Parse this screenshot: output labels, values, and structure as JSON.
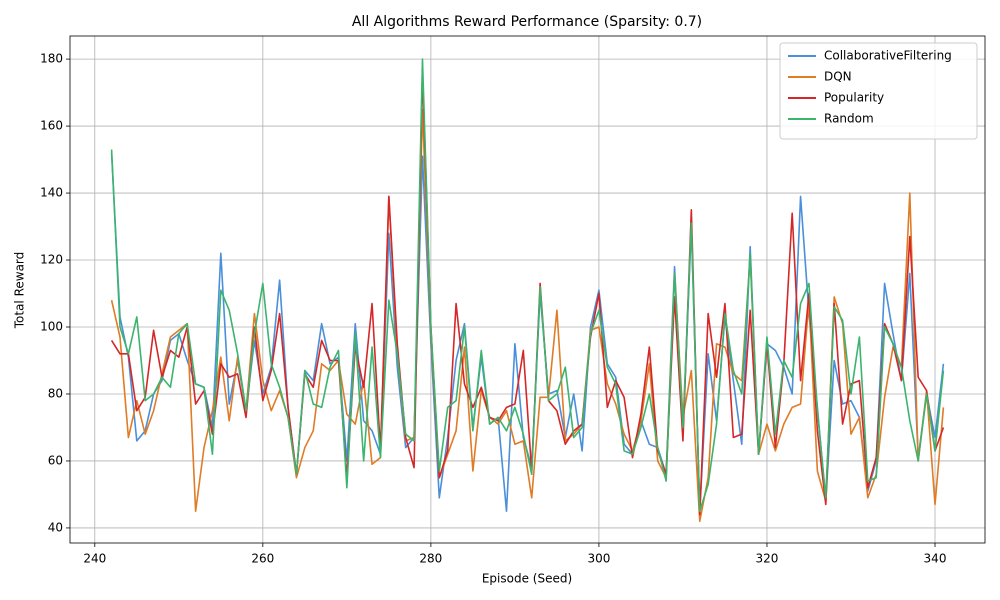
{
  "chart_data": {
    "type": "line",
    "title": "All Algorithms Reward Performance (Sparsity: 0.7)",
    "x_label": "Episode (Seed)",
    "y_label": "Total Reward",
    "x": [
      242,
      243,
      244,
      245,
      246,
      247,
      248,
      249,
      250,
      251,
      252,
      253,
      254,
      255,
      256,
      257,
      258,
      259,
      260,
      261,
      262,
      263,
      264,
      265,
      266,
      267,
      268,
      269,
      270,
      271,
      272,
      273,
      274,
      275,
      276,
      277,
      278,
      279,
      280,
      281,
      282,
      283,
      284,
      285,
      286,
      287,
      288,
      289,
      290,
      291,
      292,
      293,
      294,
      295,
      296,
      297,
      298,
      299,
      300,
      301,
      302,
      303,
      304,
      305,
      306,
      307,
      308,
      309,
      310,
      311,
      312,
      313,
      314,
      315,
      316,
      317,
      318,
      319,
      320,
      321,
      322,
      323,
      324,
      325,
      326,
      327,
      328,
      329,
      330,
      331,
      332,
      333,
      334,
      335,
      336,
      337,
      338,
      339,
      340,
      341
    ],
    "series": [
      {
        "name": "CollaborativeFiltering",
        "color": "#4a8fd9",
        "values": [
          152,
          103,
          91,
          66,
          69,
          80,
          84,
          96,
          98,
          90,
          83,
          82,
          70,
          122,
          77,
          90,
          75,
          96,
          80,
          88,
          114,
          76,
          56,
          87,
          84,
          101,
          89,
          91,
          60,
          101,
          72,
          69,
          62,
          128,
          88,
          64,
          67,
          151,
          95,
          49,
          67,
          90,
          101,
          70,
          91,
          71,
          73,
          45,
          95,
          67,
          58,
          110,
          80,
          81,
          67,
          80,
          63,
          100,
          111,
          89,
          85,
          65,
          62,
          72,
          65,
          64,
          56,
          118,
          68,
          130,
          45,
          92,
          72,
          103,
          84,
          65,
          124,
          62,
          95,
          93,
          88,
          80,
          139,
          104,
          76,
          48,
          90,
          77,
          78,
          73,
          51,
          60,
          113,
          98,
          84,
          116,
          61,
          80,
          67,
          89
        ]
      },
      {
        "name": "DQN",
        "color": "#e07b26",
        "values": [
          108,
          97,
          67,
          78,
          68,
          75,
          86,
          97,
          99,
          101,
          45,
          64,
          75,
          91,
          72,
          91,
          75,
          104,
          84,
          75,
          81,
          73,
          55,
          64,
          69,
          89,
          87,
          90,
          74,
          71,
          84,
          59,
          61,
          139,
          92,
          66,
          67,
          165,
          98,
          55,
          62,
          69,
          94,
          57,
          81,
          73,
          71,
          75,
          65,
          66,
          49,
          79,
          79,
          105,
          66,
          68,
          71,
          99,
          100,
          83,
          77,
          68,
          63,
          72,
          89,
          60,
          55,
          116,
          73,
          87,
          42,
          55,
          95,
          94,
          86,
          84,
          121,
          62,
          71,
          63,
          71,
          76,
          77,
          108,
          57,
          48,
          109,
          101,
          68,
          73,
          49,
          56,
          79,
          94,
          88,
          140,
          60,
          81,
          47,
          76
        ]
      },
      {
        "name": "Popularity",
        "color": "#d62728",
        "values": [
          96,
          92,
          92,
          75,
          79,
          99,
          85,
          93,
          91,
          100,
          77,
          81,
          68,
          89,
          85,
          86,
          73,
          100,
          78,
          87,
          104,
          76,
          56,
          86,
          82,
          96,
          90,
          90,
          55,
          94,
          82,
          107,
          63,
          139,
          95,
          67,
          58,
          176,
          100,
          55,
          63,
          107,
          83,
          76,
          82,
          73,
          72,
          76,
          77,
          93,
          57,
          113,
          78,
          75,
          65,
          69,
          71,
          97,
          110,
          76,
          84,
          79,
          61,
          74,
          94,
          63,
          56,
          109,
          66,
          135,
          44,
          104,
          85,
          107,
          67,
          68,
          105,
          62,
          95,
          64,
          89,
          134,
          84,
          110,
          69,
          47,
          107,
          71,
          83,
          84,
          52,
          61,
          101,
          95,
          84,
          127,
          85,
          81,
          63,
          70
        ]
      },
      {
        "name": "Random",
        "color": "#3cb46e",
        "values": [
          153,
          100,
          92,
          103,
          78,
          80,
          85,
          82,
          98,
          101,
          83,
          82,
          62,
          111,
          105,
          92,
          75,
          98,
          113,
          89,
          82,
          73,
          56,
          87,
          77,
          76,
          88,
          93,
          52,
          98,
          60,
          94,
          61,
          108,
          92,
          68,
          66,
          180,
          100,
          57,
          76,
          78,
          100,
          69,
          93,
          71,
          73,
          69,
          76,
          68,
          56,
          112,
          78,
          80,
          88,
          67,
          70,
          98,
          105,
          88,
          83,
          63,
          62,
          70,
          80,
          64,
          54,
          116,
          70,
          131,
          45,
          53,
          71,
          104,
          87,
          80,
          122,
          62,
          97,
          68,
          90,
          85,
          107,
          113,
          75,
          49,
          106,
          102,
          80,
          97,
          54,
          55,
          100,
          95,
          88,
          72,
          60,
          80,
          63,
          87
        ]
      }
    ],
    "xlim": [
      237.05,
      345.95
    ],
    "ylim": [
      35.5,
      186.9
    ],
    "xticks": [
      240,
      260,
      280,
      300,
      320,
      340
    ],
    "yticks": [
      40,
      60,
      80,
      100,
      120,
      140,
      160,
      180
    ],
    "grid": true,
    "legend": "upper right"
  }
}
